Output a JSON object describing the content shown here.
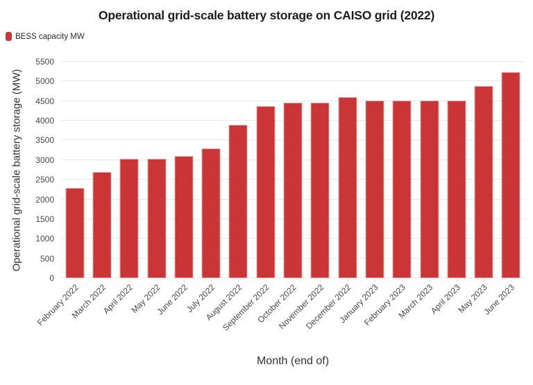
{
  "chart": {
    "title": "Operational grid-scale battery storage on CAISO grid (2022)",
    "legend": {
      "label": "BESS capacity MW",
      "marker_color": "#c93635"
    },
    "colors": {
      "bar": "#c93635",
      "grid": "#e9e9e9",
      "tick_text": "#494949",
      "title_text": "#1d1d1d"
    }
  },
  "chart_data": {
    "type": "bar",
    "title": "Operational grid-scale battery storage on CAISO grid (2022)",
    "xlabel": "Month (end of)",
    "ylabel": "Operational grid-scale battery storage (MW)",
    "legend": [
      "BESS capacity MW"
    ],
    "legend_position": "top-left",
    "grid": "horizontal",
    "ylim": [
      0,
      5500
    ],
    "ytick_step": 500,
    "categories": [
      "February 2022",
      "March 2022",
      "April 2022",
      "May 2022",
      "June 2022",
      "July 2022",
      "August 2022",
      "September 2022",
      "October 2022",
      "November 2022",
      "December 2022",
      "January 2023",
      "February 2023",
      "March 2023",
      "April 2023",
      "May 2023",
      "June 2023"
    ],
    "values": [
      2290,
      2700,
      3030,
      3030,
      3100,
      3300,
      3890,
      4370,
      4460,
      4460,
      4610,
      4520,
      4520,
      4520,
      4520,
      4890,
      5240
    ],
    "bar_color": "#c93635"
  }
}
